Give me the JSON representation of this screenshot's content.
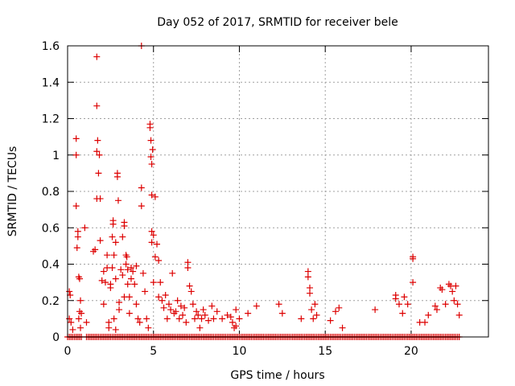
{
  "chart_data": {
    "type": "scatter",
    "title": "Day 052 of 2017, SRMTID for receiver bele",
    "xlabel": "GPS time / hours",
    "ylabel": "SRMTID / TECUs",
    "xlim": [
      0,
      24.5
    ],
    "ylim": [
      0,
      1.6
    ],
    "xticks": [
      0,
      5,
      10,
      15,
      20
    ],
    "xtick_labels": [
      "0",
      "5",
      "10",
      "15",
      "20"
    ],
    "yticks": [
      0,
      0.2,
      0.4,
      0.6,
      0.8,
      1.0,
      1.2,
      1.4,
      1.6
    ],
    "ytick_labels": [
      "0",
      "0.2",
      "0.4",
      "0.6",
      "0.8",
      "1",
      "1.2",
      "1.4",
      "1.6"
    ],
    "grid": true,
    "marker": "plus",
    "color": "#dd0000",
    "series": [
      {
        "name": "SRMTID",
        "points": [
          [
            0.1,
            0.25
          ],
          [
            0.1,
            0.1
          ],
          [
            0.15,
            0.23
          ],
          [
            0.2,
            0.08
          ],
          [
            0.3,
            0.04
          ],
          [
            0.5,
            1.09
          ],
          [
            0.5,
            1.0
          ],
          [
            0.5,
            0.72
          ],
          [
            0.55,
            0.49
          ],
          [
            0.6,
            0.58
          ],
          [
            0.6,
            0.55
          ],
          [
            0.65,
            0.33
          ],
          [
            0.65,
            0.1
          ],
          [
            0.7,
            0.32
          ],
          [
            0.7,
            0.14
          ],
          [
            0.75,
            0.2
          ],
          [
            0.75,
            0.05
          ],
          [
            0.8,
            0.13
          ],
          [
            1.0,
            0.6
          ],
          [
            1.1,
            0.08
          ],
          [
            1.5,
            0.47
          ],
          [
            1.6,
            0.48
          ],
          [
            1.7,
            1.54
          ],
          [
            1.7,
            1.27
          ],
          [
            1.7,
            1.02
          ],
          [
            1.7,
            0.76
          ],
          [
            1.75,
            1.08
          ],
          [
            1.8,
            0.9
          ],
          [
            1.85,
            1.0
          ],
          [
            1.9,
            0.76
          ],
          [
            1.9,
            0.53
          ],
          [
            2.0,
            0.31
          ],
          [
            2.1,
            0.36
          ],
          [
            2.1,
            0.18
          ],
          [
            2.2,
            0.3
          ],
          [
            2.3,
            0.45
          ],
          [
            2.3,
            0.38
          ],
          [
            2.4,
            0.08
          ],
          [
            2.4,
            0.05
          ],
          [
            2.5,
            0.29
          ],
          [
            2.5,
            0.27
          ],
          [
            2.6,
            0.55
          ],
          [
            2.6,
            0.38
          ],
          [
            2.65,
            0.64
          ],
          [
            2.65,
            0.62
          ],
          [
            2.7,
            0.45
          ],
          [
            2.7,
            0.1
          ],
          [
            2.8,
            0.52
          ],
          [
            2.8,
            0.32
          ],
          [
            2.8,
            0.04
          ],
          [
            2.9,
            0.9
          ],
          [
            2.9,
            0.88
          ],
          [
            2.95,
            0.75
          ],
          [
            3.0,
            0.19
          ],
          [
            3.0,
            0.15
          ],
          [
            3.1,
            0.37
          ],
          [
            3.2,
            0.55
          ],
          [
            3.2,
            0.34
          ],
          [
            3.3,
            0.63
          ],
          [
            3.3,
            0.61
          ],
          [
            3.3,
            0.22
          ],
          [
            3.4,
            0.45
          ],
          [
            3.4,
            0.4
          ],
          [
            3.45,
            0.44
          ],
          [
            3.5,
            0.37
          ],
          [
            3.5,
            0.29
          ],
          [
            3.6,
            0.22
          ],
          [
            3.6,
            0.13
          ],
          [
            3.7,
            0.38
          ],
          [
            3.7,
            0.32
          ],
          [
            3.8,
            0.36
          ],
          [
            3.9,
            0.29
          ],
          [
            4.0,
            0.39
          ],
          [
            4.0,
            0.18
          ],
          [
            4.1,
            0.1
          ],
          [
            4.2,
            0.08
          ],
          [
            4.3,
            1.6
          ],
          [
            4.3,
            0.82
          ],
          [
            4.3,
            0.72
          ],
          [
            4.4,
            0.35
          ],
          [
            4.5,
            0.25
          ],
          [
            4.6,
            0.1
          ],
          [
            4.7,
            0.05
          ],
          [
            4.8,
            1.17
          ],
          [
            4.8,
            1.15
          ],
          [
            4.85,
            1.08
          ],
          [
            4.85,
            0.99
          ],
          [
            4.9,
            0.95
          ],
          [
            4.9,
            0.78
          ],
          [
            4.9,
            0.58
          ],
          [
            4.9,
            0.52
          ],
          [
            4.95,
            1.03
          ],
          [
            5.0,
            0.56
          ],
          [
            5.0,
            0.3
          ],
          [
            5.1,
            0.77
          ],
          [
            5.1,
            0.44
          ],
          [
            5.2,
            0.51
          ],
          [
            5.3,
            0.42
          ],
          [
            5.3,
            0.22
          ],
          [
            5.4,
            0.3
          ],
          [
            5.5,
            0.2
          ],
          [
            5.6,
            0.16
          ],
          [
            5.7,
            0.23
          ],
          [
            5.8,
            0.1
          ],
          [
            5.9,
            0.18
          ],
          [
            6.0,
            0.15
          ],
          [
            6.1,
            0.35
          ],
          [
            6.2,
            0.13
          ],
          [
            6.3,
            0.14
          ],
          [
            6.4,
            0.2
          ],
          [
            6.5,
            0.1
          ],
          [
            6.6,
            0.17
          ],
          [
            6.7,
            0.12
          ],
          [
            6.8,
            0.16
          ],
          [
            6.9,
            0.08
          ],
          [
            7.0,
            0.41
          ],
          [
            7.0,
            0.38
          ],
          [
            7.1,
            0.28
          ],
          [
            7.2,
            0.25
          ],
          [
            7.3,
            0.18
          ],
          [
            7.4,
            0.1
          ],
          [
            7.5,
            0.14
          ],
          [
            7.6,
            0.12
          ],
          [
            7.7,
            0.05
          ],
          [
            7.8,
            0.1
          ],
          [
            7.9,
            0.15
          ],
          [
            8.0,
            0.12
          ],
          [
            8.2,
            0.09
          ],
          [
            8.4,
            0.17
          ],
          [
            8.5,
            0.1
          ],
          [
            8.7,
            0.14
          ],
          [
            9.0,
            0.1
          ],
          [
            9.3,
            0.12
          ],
          [
            9.5,
            0.11
          ],
          [
            9.6,
            0.08
          ],
          [
            9.7,
            0.05
          ],
          [
            9.8,
            0.15
          ],
          [
            9.8,
            0.06
          ],
          [
            10.0,
            0.1
          ],
          [
            10.5,
            0.13
          ],
          [
            11.0,
            0.17
          ],
          [
            12.3,
            0.18
          ],
          [
            12.5,
            0.13
          ],
          [
            13.6,
            0.1
          ],
          [
            14.0,
            0.36
          ],
          [
            14.0,
            0.33
          ],
          [
            14.1,
            0.27
          ],
          [
            14.1,
            0.24
          ],
          [
            14.2,
            0.15
          ],
          [
            14.3,
            0.1
          ],
          [
            14.4,
            0.18
          ],
          [
            14.5,
            0.12
          ],
          [
            15.3,
            0.09
          ],
          [
            15.6,
            0.14
          ],
          [
            15.8,
            0.16
          ],
          [
            16.0,
            0.05
          ],
          [
            17.9,
            0.15
          ],
          [
            19.1,
            0.23
          ],
          [
            19.1,
            0.21
          ],
          [
            19.3,
            0.18
          ],
          [
            19.5,
            0.13
          ],
          [
            19.6,
            0.22
          ],
          [
            19.8,
            0.18
          ],
          [
            20.1,
            0.44
          ],
          [
            20.1,
            0.43
          ],
          [
            20.1,
            0.3
          ],
          [
            20.5,
            0.08
          ],
          [
            20.8,
            0.08
          ],
          [
            21.0,
            0.12
          ],
          [
            21.4,
            0.17
          ],
          [
            21.5,
            0.15
          ],
          [
            21.7,
            0.27
          ],
          [
            21.8,
            0.26
          ],
          [
            22.0,
            0.18
          ],
          [
            22.2,
            0.29
          ],
          [
            22.3,
            0.28
          ],
          [
            22.4,
            0.25
          ],
          [
            22.5,
            0.2
          ],
          [
            22.6,
            0.28
          ],
          [
            22.7,
            0.18
          ],
          [
            22.8,
            0.12
          ]
        ],
        "zero_runs": [
          [
            0.0,
            0.8
          ],
          [
            1.1,
            22.8
          ]
        ]
      }
    ]
  }
}
